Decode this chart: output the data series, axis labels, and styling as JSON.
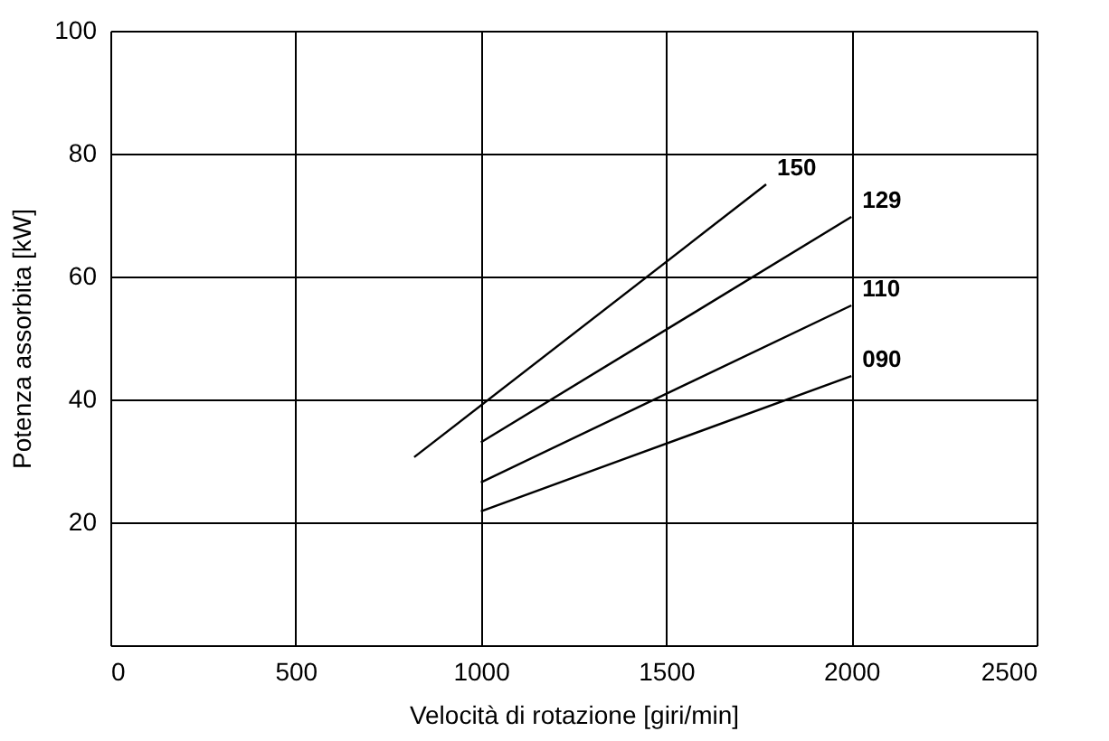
{
  "chart_data": {
    "type": "line",
    "xlabel": "Velocità di rotazione [giri/min]",
    "ylabel": "Potenza assorbita [kW]",
    "xlim": [
      0,
      2500
    ],
    "xticks": [
      0,
      500,
      1000,
      1500,
      2000,
      2500
    ],
    "ylim": [
      0,
      100
    ],
    "yticks": [
      {
        "value": 0,
        "label": null
      },
      20,
      40,
      60,
      80,
      100
    ],
    "grid": true,
    "marker": "none",
    "line_style": "solid",
    "series": [
      {
        "name": "150",
        "color": "#000000",
        "x": [
          820,
          1770
        ],
        "values": [
          30.6,
          75
        ]
      },
      {
        "name": "129",
        "color": "#000000",
        "x": [
          1000,
          2000
        ],
        "values": [
          33,
          69.7
        ]
      },
      {
        "name": "110",
        "color": "#000000",
        "x": [
          1000,
          2000
        ],
        "values": [
          26.5,
          55.3
        ]
      },
      {
        "name": "090",
        "color": "#000000",
        "x": [
          1000,
          2000
        ],
        "values": [
          21.8,
          43.8
        ]
      }
    ]
  }
}
